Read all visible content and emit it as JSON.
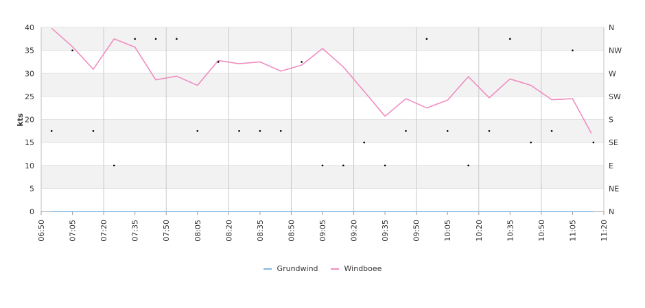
{
  "chart_data": {
    "type": "line",
    "ylabel": "kts",
    "ylim": [
      0,
      40
    ],
    "y_ticks": [
      "0",
      "5",
      "10",
      "15",
      "20",
      "25",
      "30",
      "35",
      "40"
    ],
    "right_axis_ticks": [
      "N",
      "NE",
      "E",
      "SE",
      "S",
      "SW",
      "W",
      "NW",
      "N"
    ],
    "x_range": [
      "06:50",
      "11:20"
    ],
    "x_ticks": [
      "06:50",
      "07:05",
      "07:20",
      "07:35",
      "07:50",
      "08:05",
      "08:20",
      "08:35",
      "08:50",
      "09:05",
      "09:20",
      "09:35",
      "09:50",
      "10:05",
      "10:20",
      "10:35",
      "10:50",
      "11:05",
      "11:20"
    ],
    "x_major_ticks": [
      "06:50",
      "07:20",
      "07:50",
      "08:20",
      "08:50",
      "09:20",
      "09:50",
      "10:20",
      "10:50",
      "11:20"
    ],
    "series": [
      {
        "name": "Grundwind",
        "color": "#7fb5e0",
        "points": [
          [
            "06:55",
            0
          ],
          [
            "07:05",
            0
          ],
          [
            "07:15",
            0
          ],
          [
            "07:25",
            0
          ],
          [
            "07:35",
            0
          ],
          [
            "07:45",
            0
          ],
          [
            "07:55",
            0
          ],
          [
            "08:05",
            0
          ],
          [
            "08:15",
            0
          ],
          [
            "08:25",
            0
          ],
          [
            "08:35",
            0
          ],
          [
            "08:45",
            0
          ],
          [
            "08:55",
            0
          ],
          [
            "09:05",
            0
          ],
          [
            "09:15",
            0
          ],
          [
            "09:25",
            0
          ],
          [
            "09:35",
            0
          ],
          [
            "09:45",
            0
          ],
          [
            "09:55",
            0
          ],
          [
            "10:05",
            0
          ],
          [
            "10:15",
            0
          ],
          [
            "10:25",
            0
          ],
          [
            "10:35",
            0
          ],
          [
            "10:45",
            0
          ],
          [
            "10:55",
            0
          ],
          [
            "11:05",
            0
          ],
          [
            "11:15",
            0
          ]
        ]
      },
      {
        "name": "Windboee",
        "color": "#f08cc0",
        "points": [
          [
            "06:55",
            39.8
          ],
          [
            "07:05",
            35.8
          ],
          [
            "07:15",
            30.9
          ],
          [
            "07:25",
            37.5
          ],
          [
            "07:35",
            35.7
          ],
          [
            "07:45",
            28.6
          ],
          [
            "07:55",
            29.4
          ],
          [
            "08:05",
            27.4
          ],
          [
            "08:15",
            32.8
          ],
          [
            "08:25",
            32.1
          ],
          [
            "08:35",
            32.5
          ],
          [
            "08:45",
            30.5
          ],
          [
            "08:55",
            31.8
          ],
          [
            "09:05",
            35.4
          ],
          [
            "09:15",
            31.4
          ],
          [
            "09:25",
            26.1
          ],
          [
            "09:35",
            20.7
          ],
          [
            "09:45",
            24.5
          ],
          [
            "09:55",
            22.5
          ],
          [
            "10:05",
            24.2
          ],
          [
            "10:15",
            29.3
          ],
          [
            "10:25",
            24.7
          ],
          [
            "10:35",
            28.8
          ],
          [
            "10:45",
            27.4
          ],
          [
            "10:55",
            24.3
          ],
          [
            "11:05",
            24.5
          ],
          [
            "11:14",
            17.0
          ]
        ]
      }
    ],
    "direction_dots": {
      "color": "#000000",
      "points": [
        [
          "06:55",
          "SSE"
        ],
        [
          "07:05",
          "NW"
        ],
        [
          "07:15",
          "SSE"
        ],
        [
          "07:25",
          "E"
        ],
        [
          "07:35",
          "NNW"
        ],
        [
          "07:45",
          "NNW"
        ],
        [
          "07:55",
          "NNW"
        ],
        [
          "08:05",
          "SSE"
        ],
        [
          "08:15",
          "WNW"
        ],
        [
          "08:25",
          "SSE"
        ],
        [
          "08:35",
          "SSE"
        ],
        [
          "08:45",
          "SSE"
        ],
        [
          "08:55",
          "WNW"
        ],
        [
          "09:05",
          "E"
        ],
        [
          "09:15",
          "E"
        ],
        [
          "09:25",
          "SE"
        ],
        [
          "09:35",
          "E"
        ],
        [
          "09:45",
          "SSE"
        ],
        [
          "09:55",
          "NNW"
        ],
        [
          "10:05",
          "SSE"
        ],
        [
          "10:15",
          "E"
        ],
        [
          "10:25",
          "SSE"
        ],
        [
          "10:35",
          "NNW"
        ],
        [
          "10:45",
          "SE"
        ],
        [
          "10:55",
          "SSE"
        ],
        [
          "11:05",
          "NW"
        ],
        [
          "11:15",
          "SE"
        ]
      ]
    },
    "grid": true,
    "legend_position": "bottom"
  }
}
